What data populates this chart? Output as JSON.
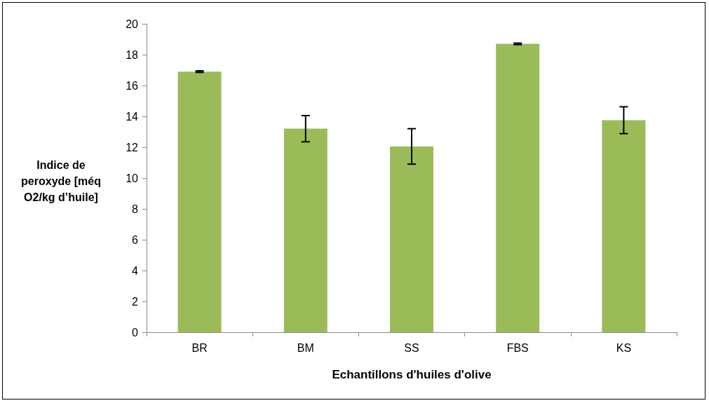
{
  "chart_data": {
    "type": "bar",
    "xlabel": "Echantillons d'huiles d'olive",
    "ylabel": "Indice de peroxyde [méq O2/kg d’huile]",
    "categories": [
      "BR",
      "BM",
      "SS",
      "FBS",
      "KS"
    ],
    "values": [
      16.9,
      13.2,
      12.05,
      18.7,
      13.75
    ],
    "errors": [
      0.05,
      0.85,
      1.15,
      0.05,
      0.87
    ],
    "color": "#9bbb59",
    "ylim": [
      0,
      20
    ],
    "yticks": [
      0,
      2,
      4,
      6,
      8,
      10,
      12,
      14,
      16,
      18,
      20
    ],
    "grid": false
  }
}
